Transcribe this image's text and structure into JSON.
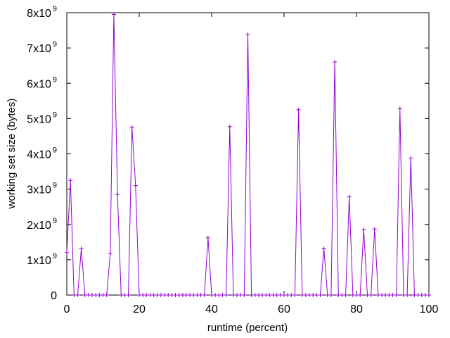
{
  "chart_data": {
    "type": "line",
    "xlabel": "runtime (percent)",
    "ylabel": "working set size (bytes)",
    "xlim": [
      0,
      100
    ],
    "ylim": [
      0,
      8000000000
    ],
    "x_ticks": [
      "0",
      "20",
      "40",
      "60",
      "80",
      "100"
    ],
    "y_ticks": [
      {
        "base": "0",
        "exp": ""
      },
      {
        "base": "1x10",
        "exp": "9"
      },
      {
        "base": "2x10",
        "exp": "9"
      },
      {
        "base": "3x10",
        "exp": "9"
      },
      {
        "base": "4x10",
        "exp": "9"
      },
      {
        "base": "5x10",
        "exp": "9"
      },
      {
        "base": "6x10",
        "exp": "9"
      },
      {
        "base": "7x10",
        "exp": "9"
      },
      {
        "base": "8x10",
        "exp": "9"
      }
    ],
    "grid": false,
    "legend": "none",
    "series": [
      {
        "color": "#9400d3",
        "marker": "plus",
        "x": [
          0,
          1,
          2,
          3,
          4,
          5,
          6,
          7,
          8,
          9,
          10,
          11,
          12,
          13,
          14,
          15,
          16,
          17,
          18,
          19,
          20,
          21,
          22,
          23,
          24,
          25,
          26,
          27,
          28,
          29,
          30,
          31,
          32,
          33,
          34,
          35,
          36,
          37,
          38,
          39,
          40,
          41,
          42,
          43,
          44,
          45,
          46,
          47,
          48,
          49,
          50,
          51,
          52,
          53,
          54,
          55,
          56,
          57,
          58,
          59,
          60,
          61,
          62,
          63,
          64,
          65,
          66,
          67,
          68,
          69,
          70,
          71,
          72,
          73,
          74,
          75,
          76,
          77,
          78,
          79,
          80,
          81,
          82,
          83,
          84,
          85,
          86,
          87,
          88,
          89,
          90,
          91,
          92,
          93,
          94,
          95,
          96,
          97,
          98,
          99,
          100
        ],
        "y": [
          1200000000,
          3250000000,
          0,
          0,
          1320000000,
          0,
          0,
          0,
          0,
          0,
          0,
          0,
          1180000000,
          7950000000,
          2850000000,
          0,
          0,
          0,
          4750000000,
          3100000000,
          0,
          0,
          0,
          0,
          0,
          0,
          0,
          0,
          0,
          0,
          0,
          0,
          0,
          0,
          0,
          0,
          0,
          0,
          0,
          1620000000,
          0,
          0,
          0,
          0,
          0,
          4770000000,
          0,
          0,
          0,
          0,
          7380000000,
          0,
          0,
          0,
          0,
          0,
          0,
          0,
          0,
          0,
          0,
          0,
          0,
          0,
          5250000000,
          0,
          0,
          0,
          0,
          0,
          0,
          1320000000,
          0,
          0,
          6600000000,
          0,
          0,
          0,
          2780000000,
          0,
          0,
          0,
          1850000000,
          0,
          0,
          1870000000,
          0,
          0,
          0,
          0,
          0,
          0,
          5280000000,
          0,
          0,
          3880000000,
          0,
          0,
          0,
          0,
          0
        ]
      }
    ]
  }
}
